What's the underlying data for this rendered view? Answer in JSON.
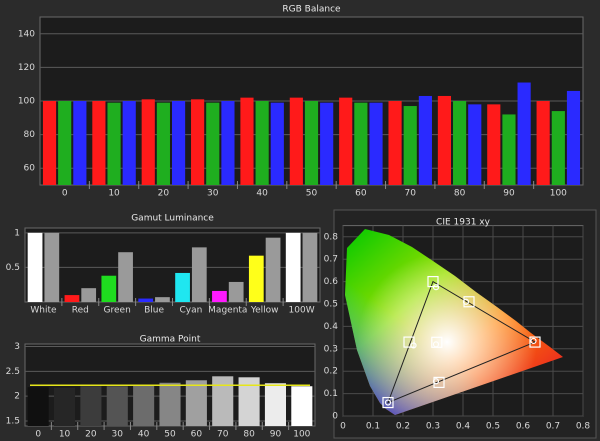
{
  "chart_data": [
    {
      "type": "bar",
      "title": "RGB Balance",
      "categories": [
        "0",
        "10",
        "20",
        "30",
        "40",
        "50",
        "60",
        "70",
        "80",
        "90",
        "100"
      ],
      "series": [
        {
          "color": "#ff1a1a",
          "values": [
            100,
            100,
            101,
            101,
            102,
            102,
            102,
            100,
            103,
            98,
            100
          ]
        },
        {
          "color": "#1fae1f",
          "values": [
            100,
            99,
            99,
            99,
            100,
            100,
            99,
            97,
            100,
            92,
            94
          ]
        },
        {
          "color": "#2a2aff",
          "values": [
            100,
            100,
            100,
            100,
            99,
            99,
            99,
            103,
            98,
            111,
            106
          ]
        }
      ],
      "ylim": [
        50,
        150
      ],
      "yticks": [
        60,
        80,
        100,
        120,
        140
      ],
      "grid": true
    },
    {
      "type": "bar",
      "title": "Gamut Luminance",
      "categories": [
        "White",
        "Red",
        "Green",
        "Blue",
        "Cyan",
        "Magenta",
        "Yellow",
        "100W"
      ],
      "series": [
        {
          "colors": [
            "#ffffff",
            "#ff1a1a",
            "#1fdd1f",
            "#2a2aff",
            "#1fe6f0",
            "#ff1aff",
            "#ffff1a",
            "#ffffff"
          ],
          "values": [
            1,
            0.1,
            0.38,
            0.05,
            0.42,
            0.16,
            0.67,
            1
          ]
        },
        {
          "color": "#9a9a9a",
          "values": [
            1,
            0.2,
            0.72,
            0.07,
            0.79,
            0.29,
            0.93,
            1
          ]
        }
      ],
      "ylim": [
        0,
        1.07
      ],
      "yticks": [
        0.5,
        1
      ],
      "grid": true
    },
    {
      "type": "bar",
      "title": "Gamma Point",
      "categories": [
        "0",
        "10",
        "20",
        "30",
        "40",
        "50",
        "60",
        "70",
        "80",
        "90",
        "100"
      ],
      "series": [
        {
          "colors": [
            "#101010",
            "#262626",
            "#3c3c3c",
            "#545454",
            "#6c6c6c",
            "#868686",
            "#a0a0a0",
            "#bababa",
            "#d4d4d4",
            "#ececec",
            "#ffffff"
          ],
          "values": [
            2.18,
            2.17,
            2.2,
            2.2,
            2.22,
            2.27,
            2.32,
            2.4,
            2.38,
            2.26,
            2.2
          ]
        }
      ],
      "target": 2.22,
      "target_color": "#e6e61a",
      "ylim": [
        1.4,
        3.05
      ],
      "yticks": [
        1.5,
        2,
        2.5,
        3
      ],
      "grid": true
    },
    {
      "type": "scatter",
      "title": "CIE 1931 xy",
      "series": [
        {
          "marker": "square",
          "color": "#ffffff",
          "x": [
            0.64,
            0.3,
            0.15,
            0.42,
            0.22,
            0.32,
            0.3127
          ],
          "y": [
            0.33,
            0.6,
            0.06,
            0.51,
            0.33,
            0.15,
            0.329
          ]
        },
        {
          "marker": "circle",
          "color": "#ffffff",
          "x": [
            0.635,
            0.31,
            0.15,
            0.41,
            0.235,
            0.31,
            0.31
          ],
          "y": [
            0.335,
            0.575,
            0.06,
            0.51,
            0.315,
            0.155,
            0.32
          ]
        }
      ],
      "xlim": [
        0,
        0.8
      ],
      "ylim": [
        0,
        0.85
      ],
      "xticks": [
        0,
        0.1,
        0.2,
        0.3,
        0.4,
        0.5,
        0.6,
        0.7,
        0.8
      ],
      "yticks": [
        0,
        0.1,
        0.2,
        0.3,
        0.4,
        0.5,
        0.6,
        0.7,
        0.8
      ],
      "grid": true
    }
  ]
}
